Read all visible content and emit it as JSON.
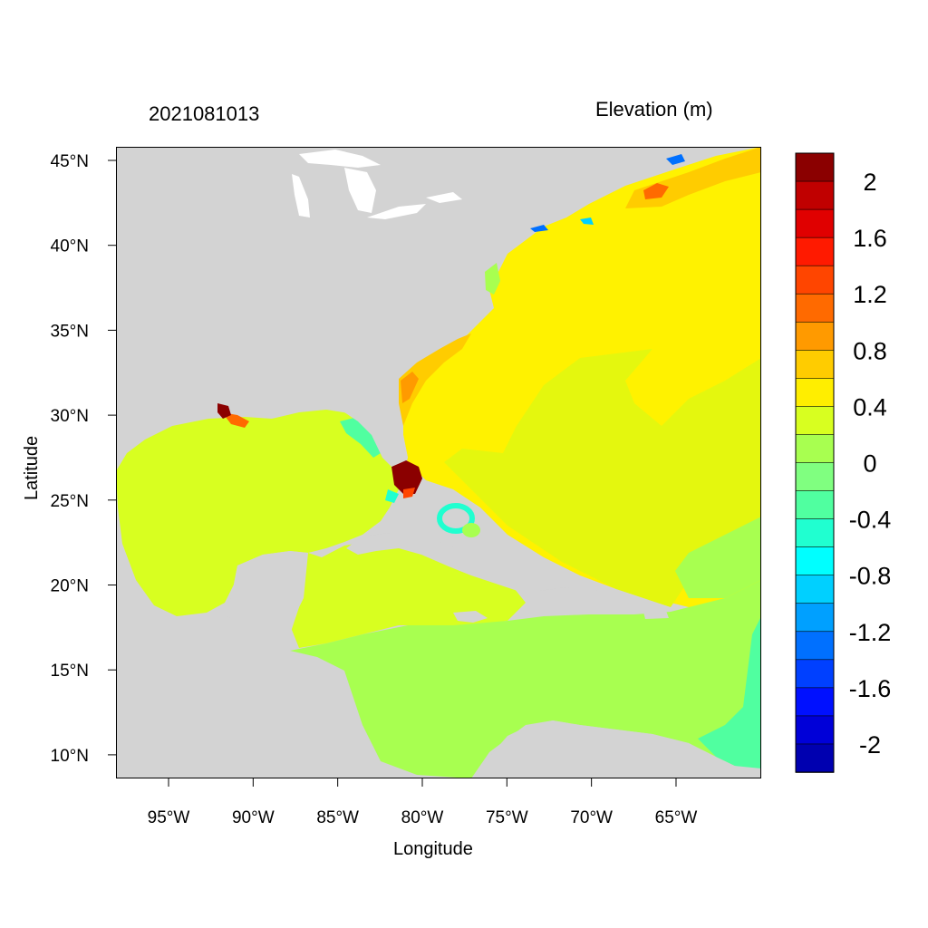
{
  "map": {
    "title_left": "2021081013",
    "title_right": "Elevation (m)",
    "xlabel": "Longitude",
    "ylabel": "Latitude",
    "lon_ticks": [
      "95°W",
      "90°W",
      "85°W",
      "80°W",
      "75°W",
      "70°W",
      "65°W"
    ],
    "lat_ticks": [
      "45°N",
      "40°N",
      "35°N",
      "30°N",
      "25°N",
      "20°N",
      "15°N",
      "10°N"
    ],
    "land_color": "#d3d3d3",
    "frame_color": "#000000"
  },
  "colorbar": {
    "labels": [
      "2",
      "1.6",
      "1.2",
      "0.8",
      "0.4",
      "0",
      "-0.4",
      "-0.8",
      "-1.2",
      "-1.6",
      "-2"
    ],
    "colors_top_to_bottom": [
      "#8b0000",
      "#c00000",
      "#e00000",
      "#ff1a00",
      "#ff4500",
      "#ff6a00",
      "#ff9a00",
      "#ffcc00",
      "#ffee00",
      "#d8ff20",
      "#a8ff50",
      "#80ff80",
      "#50ffa0",
      "#20ffd0",
      "#00ffff",
      "#00d0ff",
      "#00a0ff",
      "#0070ff",
      "#0040ff",
      "#0010ff",
      "#0000d8",
      "#0000b0"
    ]
  }
}
